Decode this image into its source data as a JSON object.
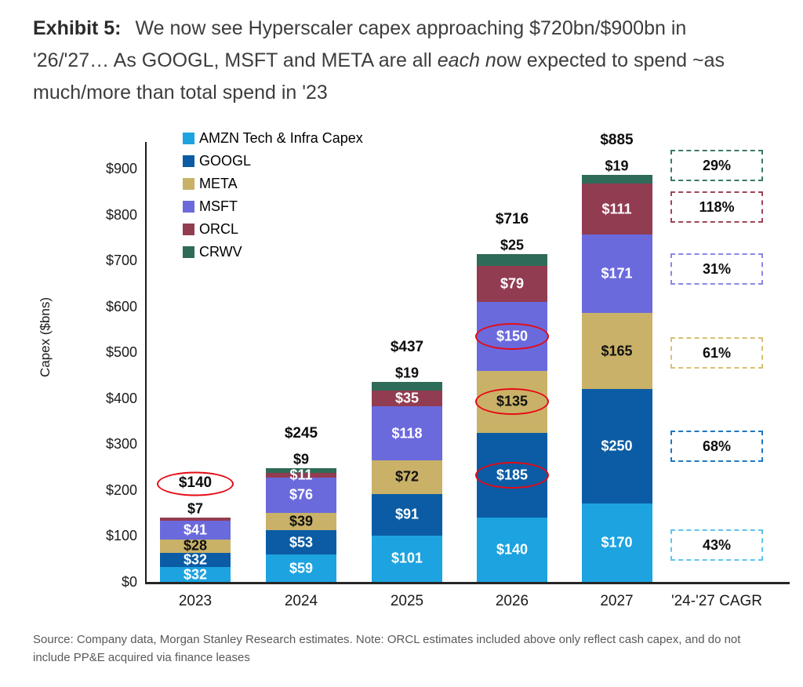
{
  "header": {
    "exhibit_label": "Exhibit 5:",
    "title_part1": "We now see Hyperscaler capex approaching $720bn/$900bn in '26/'27… As GOOGL, MSFT and META are all ",
    "title_italic": "each n",
    "title_part2": "ow expected to spend ~as much/more than total spend in '23"
  },
  "footer": {
    "source_note": "Source: Company data, Morgan Stanley Research estimates. Note: ORCL estimates included above only reflect cash capex, and do not include PP&E acquired via finance leases"
  },
  "chart_data": {
    "type": "stacked-bar",
    "ylabel": "Capex ($bns)",
    "ylim": [
      0,
      900
    ],
    "ytick_step": 100,
    "ytick_prefix": "$",
    "grid": false,
    "legend_position": "top-left-inside",
    "categories": [
      "2023",
      "2024",
      "2025",
      "2026",
      "2027"
    ],
    "cagr_column_label": "'24-'27 CAGR",
    "series": [
      {
        "name": "AMZN Tech & Infra Capex",
        "color": "#1CA3E0",
        "box_border_color": "#5EC4F1",
        "label_text_color": "#ffffff",
        "cagr": "43%",
        "values": [
          32,
          59,
          101,
          140,
          170
        ]
      },
      {
        "name": "GOOGL",
        "color": "#0B5CA4",
        "box_border_color": "#1C77C3",
        "label_text_color": "#ffffff",
        "cagr": "68%",
        "values": [
          32,
          53,
          91,
          185,
          250
        ]
      },
      {
        "name": "META",
        "color": "#C9B168",
        "box_border_color": "#D6C173",
        "label_text_color": "#111111",
        "cagr": "61%",
        "values": [
          28,
          39,
          72,
          135,
          165
        ]
      },
      {
        "name": "MSFT",
        "color": "#6B6ADC",
        "box_border_color": "#8787EA",
        "label_text_color": "#ffffff",
        "cagr": "31%",
        "values": [
          41,
          76,
          118,
          150,
          171
        ]
      },
      {
        "name": "ORCL",
        "color": "#923C52",
        "box_border_color": "#A04456",
        "label_text_color": "#ffffff",
        "cagr": "118%",
        "values": [
          7,
          11,
          35,
          79,
          111
        ]
      },
      {
        "name": "CRWV",
        "color": "#2E6B58",
        "box_border_color": "#3A7A65",
        "label_text_color": "#ffffff",
        "cagr": "29%",
        "values": [
          0,
          9,
          19,
          25,
          19
        ]
      }
    ],
    "totals": [
      140,
      245,
      437,
      716,
      885
    ],
    "total_labels": [
      "$140",
      "$245",
      "$437",
      "$716",
      "$885"
    ],
    "above_label_points": [
      {
        "series": 4,
        "year": 0
      },
      {
        "series": 5,
        "year": 1
      },
      {
        "series": 5,
        "year": 2
      },
      {
        "series": 5,
        "year": 3
      },
      {
        "series": 5,
        "year": 4
      }
    ],
    "circled_segments": [
      {
        "series": 1,
        "year": 3
      },
      {
        "series": 2,
        "year": 3
      },
      {
        "series": 3,
        "year": 3
      }
    ],
    "circled_totals": [
      0
    ],
    "highlight_color": "#E60A14"
  }
}
